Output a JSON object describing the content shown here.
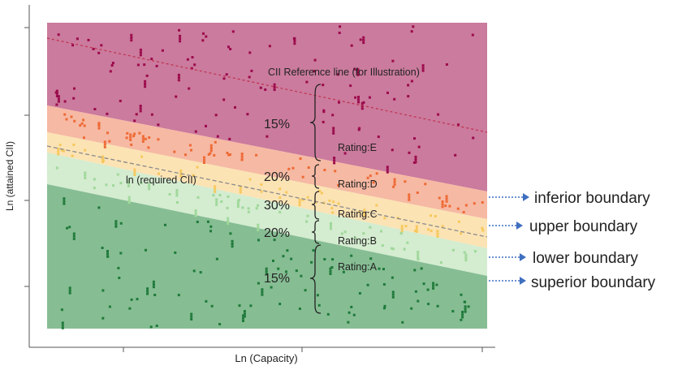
{
  "chart_data": {
    "type": "scatter",
    "title": "",
    "xlabel": "Ln (Capacity)",
    "ylabel": "Ln (attained CII)",
    "grid": false,
    "legend": "none",
    "bands": [
      {
        "name": "Rating:E",
        "color": "#cb7b9d"
      },
      {
        "name": "Rating:D",
        "color": "#f6b9a3"
      },
      {
        "name": "Rating:C",
        "color": "#fbe3b4"
      },
      {
        "name": "Rating:B",
        "color": "#d4ecd0"
      },
      {
        "name": "Rating:A",
        "color": "#86bd93"
      }
    ],
    "lines": {
      "reference": {
        "label": "CII Reference line (for Illustration)",
        "color": "#c0304f"
      },
      "required": {
        "label": "ln (required CII)",
        "color": "#8a8a8a"
      }
    },
    "percentages": [
      "15%",
      "20%",
      "30%",
      "20%",
      "15%"
    ],
    "boundary_labels": [
      "inferior boundary",
      "upper boundary",
      "lower boundary",
      "superior boundary"
    ],
    "point_colors": {
      "E": "#9b0a4c",
      "D": "#ee6a36",
      "C": "#f6c85d",
      "B": "#9fd89a",
      "A": "#1f7a3a"
    }
  }
}
